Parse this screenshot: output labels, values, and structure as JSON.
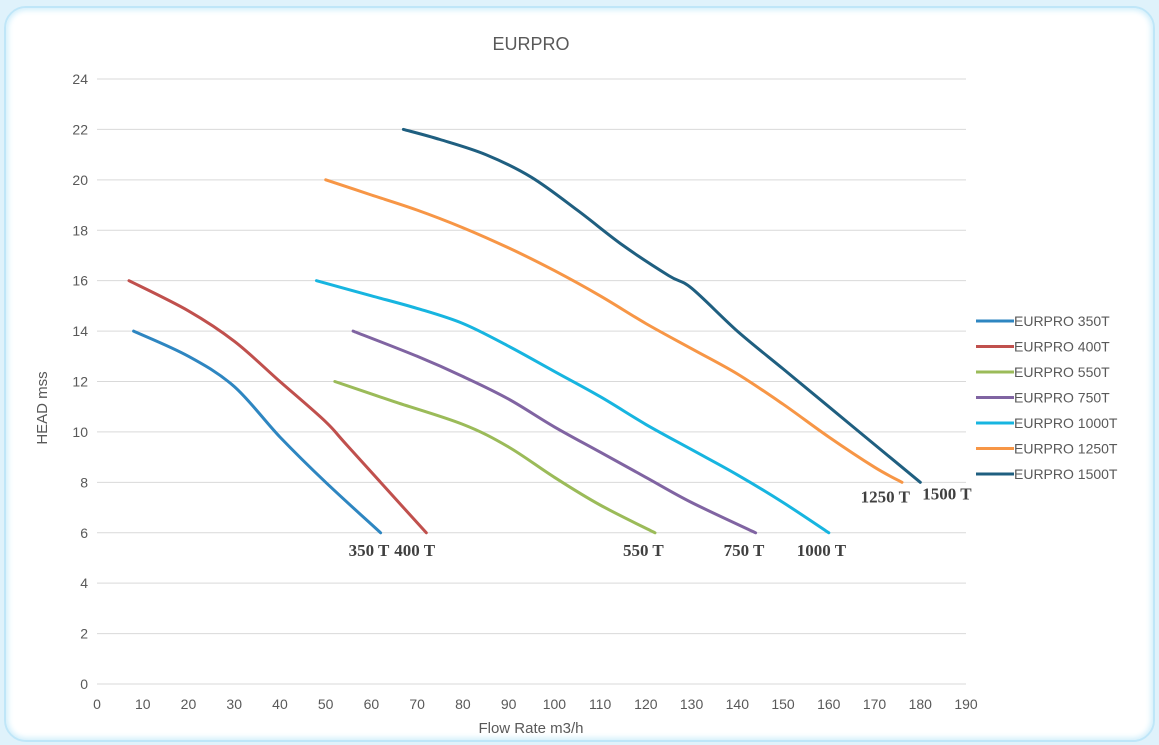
{
  "chart_data": {
    "type": "line",
    "title": "EURPRO",
    "xlabel": "Flow Rate m3/h",
    "ylabel": "HEAD mss",
    "xlim": [
      0,
      190
    ],
    "ylim": [
      0,
      24
    ],
    "x_ticks": [
      0,
      10,
      20,
      30,
      40,
      50,
      60,
      70,
      80,
      90,
      100,
      110,
      120,
      130,
      140,
      150,
      160,
      170,
      180,
      190
    ],
    "y_ticks": [
      0,
      2,
      4,
      6,
      8,
      10,
      12,
      14,
      16,
      18,
      20,
      22,
      24
    ],
    "grid": "horizontal",
    "legend_position": "right",
    "series": [
      {
        "name": "EURPRO 350T",
        "color": "#2e86c1",
        "end_label": "350 T",
        "points": [
          [
            8,
            14
          ],
          [
            20,
            13
          ],
          [
            30,
            11.8
          ],
          [
            40,
            9.8
          ],
          [
            50,
            8
          ],
          [
            62,
            6
          ]
        ]
      },
      {
        "name": "EURPRO 400T",
        "color": "#c0504d",
        "end_label": "400 T",
        "points": [
          [
            7,
            16
          ],
          [
            20,
            14.8
          ],
          [
            30,
            13.6
          ],
          [
            40,
            12
          ],
          [
            50,
            10.4
          ],
          [
            55,
            9.4
          ],
          [
            72,
            6
          ]
        ]
      },
      {
        "name": "EURPRO 550T",
        "color": "#9bbb59",
        "end_label": "550 T",
        "points": [
          [
            52,
            12
          ],
          [
            65,
            11.2
          ],
          [
            80,
            10.3
          ],
          [
            90,
            9.4
          ],
          [
            100,
            8.2
          ],
          [
            110,
            7.1
          ],
          [
            122,
            6
          ]
        ]
      },
      {
        "name": "EURPRO 750T",
        "color": "#8064a2",
        "end_label": "750 T",
        "points": [
          [
            56,
            14
          ],
          [
            70,
            13
          ],
          [
            80,
            12.2
          ],
          [
            90,
            11.3
          ],
          [
            100,
            10.2
          ],
          [
            110,
            9.2
          ],
          [
            120,
            8.2
          ],
          [
            130,
            7.2
          ],
          [
            144,
            6
          ]
        ]
      },
      {
        "name": "EURPRO 1000T",
        "color": "#17b5e0",
        "end_label": "1000 T",
        "points": [
          [
            48,
            16
          ],
          [
            60,
            15.4
          ],
          [
            70,
            14.9
          ],
          [
            80,
            14.3
          ],
          [
            90,
            13.4
          ],
          [
            100,
            12.4
          ],
          [
            110,
            11.4
          ],
          [
            120,
            10.3
          ],
          [
            130,
            9.3
          ],
          [
            140,
            8.3
          ],
          [
            150,
            7.2
          ],
          [
            160,
            6
          ]
        ]
      },
      {
        "name": "EURPRO 1250T",
        "color": "#f79646",
        "end_label": "1250 T",
        "points": [
          [
            50,
            20
          ],
          [
            60,
            19.4
          ],
          [
            70,
            18.8
          ],
          [
            80,
            18.1
          ],
          [
            90,
            17.3
          ],
          [
            100,
            16.4
          ],
          [
            110,
            15.4
          ],
          [
            120,
            14.3
          ],
          [
            130,
            13.3
          ],
          [
            140,
            12.3
          ],
          [
            150,
            11.1
          ],
          [
            160,
            9.8
          ],
          [
            170,
            8.6
          ],
          [
            176,
            8
          ]
        ]
      },
      {
        "name": "EURPRO 1500T",
        "color": "#1f5f80",
        "end_label": "1500 T",
        "points": [
          [
            67,
            22
          ],
          [
            75,
            21.6
          ],
          [
            85,
            21
          ],
          [
            95,
            20.1
          ],
          [
            105,
            18.8
          ],
          [
            115,
            17.4
          ],
          [
            125,
            16.2
          ],
          [
            130,
            15.7
          ],
          [
            140,
            14
          ],
          [
            150,
            12.5
          ],
          [
            160,
            11
          ],
          [
            170,
            9.5
          ],
          [
            180,
            8
          ]
        ]
      }
    ]
  }
}
